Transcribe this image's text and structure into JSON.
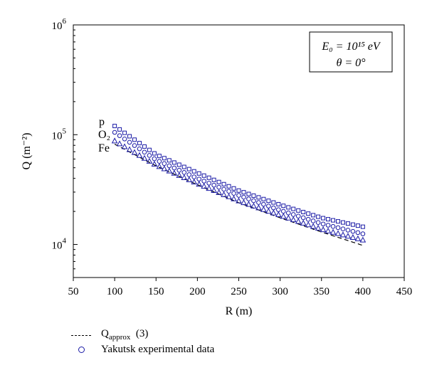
{
  "chart_data": {
    "type": "scatter",
    "xlabel": "R (m)",
    "ylabel": "Q (m⁻²)",
    "xlim": [
      50,
      450
    ],
    "ylim": [
      5000,
      1000000
    ],
    "y_scale": "log",
    "x_ticks": [
      "50",
      "100",
      "150",
      "200",
      "250",
      "300",
      "350",
      "400",
      "450"
    ],
    "y_ticks": [
      {
        "value": 10000,
        "base": "10",
        "exp": "4"
      },
      {
        "value": 100000,
        "base": "10",
        "exp": "5"
      },
      {
        "value": 1000000,
        "base": "10",
        "exp": "6"
      }
    ],
    "annotation": {
      "line1": "E₀ = 10¹⁵ eV",
      "line2": "θ = 0°"
    },
    "curve_labels": [
      "p",
      "O₂",
      "Fe"
    ],
    "series": [
      {
        "name": "p",
        "marker": "square",
        "color": "#1a1aa6",
        "x": [
          100,
          150,
          200,
          250,
          300,
          350,
          400
        ],
        "y": [
          120000,
          66000,
          45000,
          31000,
          23000,
          17500,
          14500
        ]
      },
      {
        "name": "O₂",
        "marker": "circle",
        "color": "#1a1aa6",
        "x": [
          100,
          150,
          200,
          250,
          300,
          350,
          400
        ],
        "y": [
          105000,
          59000,
          40000,
          28000,
          20500,
          15500,
          12500
        ]
      },
      {
        "name": "Fe",
        "marker": "triangle",
        "color": "#1a1aa6",
        "x": [
          100,
          150,
          200,
          250,
          300,
          350,
          400
        ],
        "y": [
          88000,
          53000,
          36000,
          25000,
          18500,
          13800,
          11000
        ]
      }
    ],
    "approx_curve": {
      "x": [
        100,
        150,
        200,
        250,
        300,
        350,
        400
      ],
      "y": [
        82000,
        52000,
        35000,
        24000,
        17500,
        13000,
        9800
      ]
    },
    "legend": {
      "placement": "bottom-left",
      "entries": [
        {
          "label": "Q",
          "label_sub": "approx",
          "label_suffix": "(3)"
        },
        {
          "label": "Yakutsk experimental data"
        }
      ]
    }
  }
}
